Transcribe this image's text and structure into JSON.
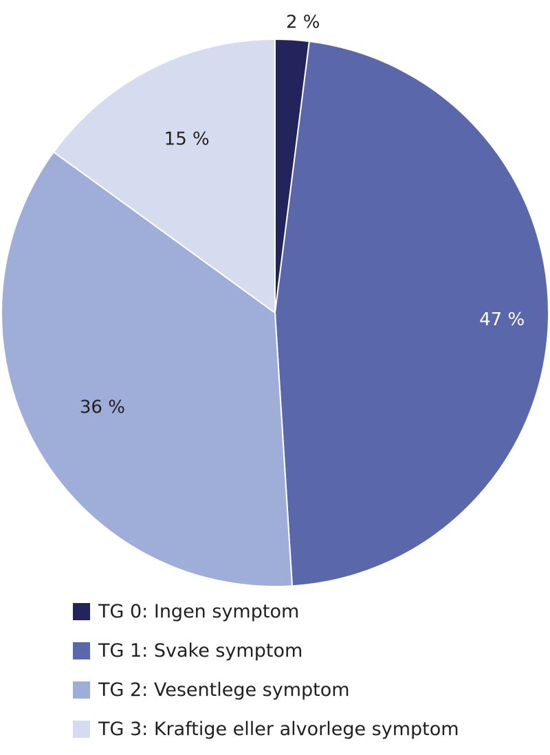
{
  "chart_data": {
    "type": "pie",
    "categories": [
      "TG 0: Ingen symptom",
      "TG 1: Svake symptom",
      "TG 2: Vesentlege symptom",
      "TG 3: Kraftige eller alvorlege symptom"
    ],
    "values": [
      2,
      47,
      36,
      15
    ],
    "value_labels": [
      "2 %",
      "47 %",
      "36 %",
      "15 %"
    ],
    "colors": [
      "#24245c",
      "#5a68ab",
      "#9eaed8",
      "#d6dcef"
    ],
    "label_colors": [
      "#231f20",
      "#ffffff",
      "#231f20",
      "#231f20"
    ],
    "start_angle": "12 o'clock",
    "direction": "clockwise",
    "legend_position": "bottom-left"
  }
}
